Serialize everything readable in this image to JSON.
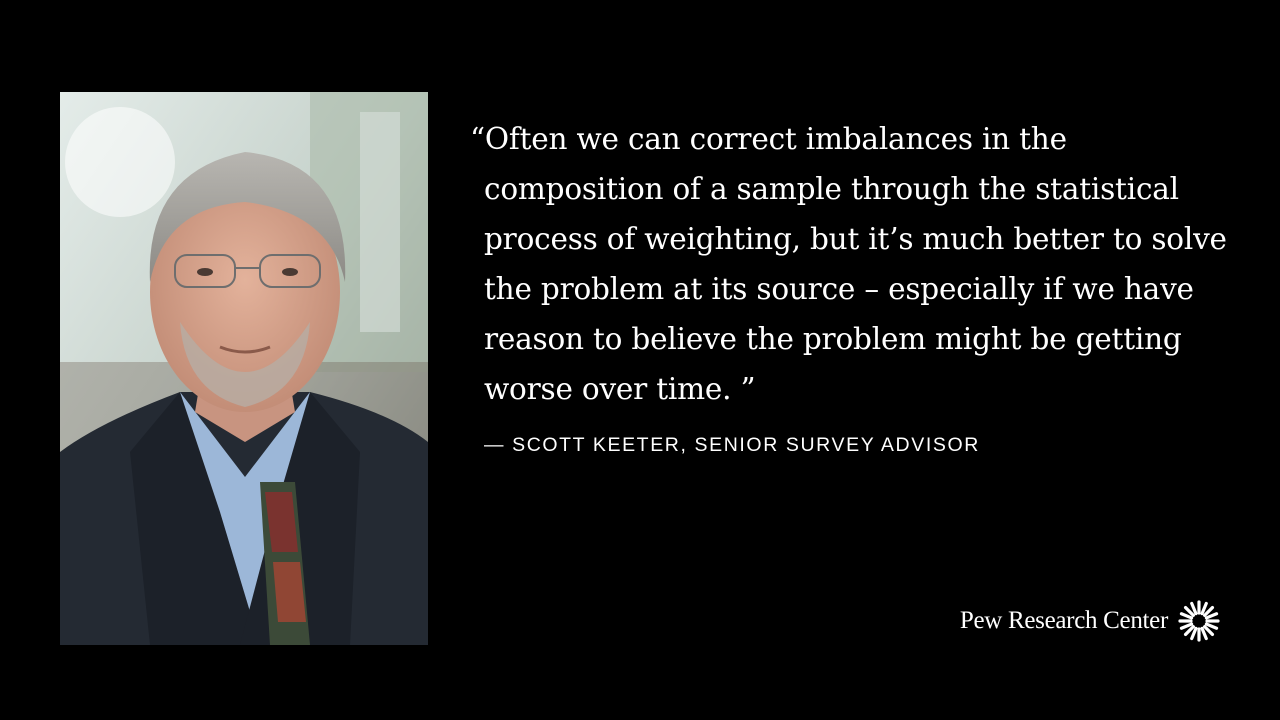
{
  "quote": {
    "lines": [
      "“Often we can correct imbalances in the",
      "composition of a sample through the statistical",
      "process of weighting, but it’s much better to solve",
      "the problem at its source – especially if we have",
      "reason to believe the problem might be getting",
      "worse over time. ”"
    ],
    "attribution": "— SCOTT KEETER, SENIOR SURVEY ADVISOR"
  },
  "brand": {
    "name": "Pew Research Center",
    "icon": "starburst-logo-icon"
  },
  "colors": {
    "background": "#000000",
    "text": "#ffffff"
  }
}
